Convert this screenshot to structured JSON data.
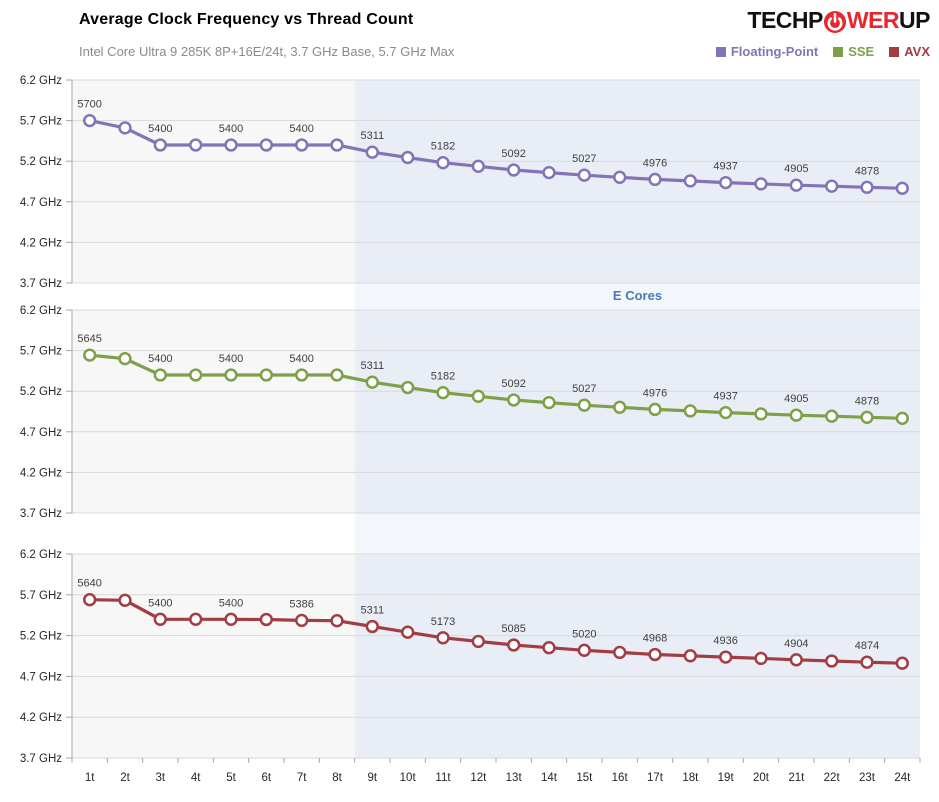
{
  "header": {
    "title": "Average Clock Frequency vs Thread Count",
    "subtitle": "Intel Core Ultra 9 285K 8P+16E/24t, 3.7 GHz Base, 5.7 GHz Max"
  },
  "logo": {
    "name": "TechPowerUp",
    "text_pre": "TECHP",
    "text_mid": "WER",
    "text_post": "UP"
  },
  "legend": [
    {
      "label": "Floating-Point",
      "color": "#8374b6"
    },
    {
      "label": "SSE",
      "color": "#7ea04a"
    },
    {
      "label": "AVX",
      "color": "#a13d43"
    }
  ],
  "chart_data": {
    "type": "line",
    "title": "Average Clock Frequency vs Thread Count",
    "subtitle": "Intel Core Ultra 9 285K 8P+16E/24t, 3.7 GHz Base, 5.7 GHz Max",
    "values_unit": "MHz",
    "categories": [
      "1t",
      "2t",
      "3t",
      "4t",
      "5t",
      "6t",
      "7t",
      "8t",
      "9t",
      "10t",
      "11t",
      "12t",
      "13t",
      "14t",
      "15t",
      "16t",
      "17t",
      "18t",
      "19t",
      "20t",
      "21t",
      "22t",
      "23t",
      "24t"
    ],
    "y_axis": {
      "unit": "GHz",
      "min": 3.7,
      "max": 6.2,
      "tick_step": 0.5,
      "tick_labels": [
        "6.2 GHz",
        "5.7 GHz",
        "5.2 GHz",
        "4.7 GHz",
        "4.2 GHz",
        "3.7 GHz"
      ]
    },
    "annotation": {
      "label": "E Cores",
      "color": "#4a7cba",
      "region_start_category": "9t"
    },
    "panels": [
      {
        "series": "Floating-Point",
        "color": "#8374b6",
        "values": [
          5700,
          5610,
          5400,
          5400,
          5400,
          5400,
          5400,
          5400,
          5311,
          5246,
          5182,
          5137,
          5092,
          5060,
          5027,
          5002,
          4976,
          4957,
          4937,
          4921,
          4905,
          4892,
          4878,
          4866
        ],
        "point_labels": [
          "5700",
          null,
          "5400",
          null,
          "5400",
          null,
          "5400",
          null,
          "5311",
          null,
          "5182",
          null,
          "5092",
          null,
          "5027",
          null,
          "4976",
          null,
          "4937",
          null,
          "4905",
          null,
          "4878",
          null
        ]
      },
      {
        "series": "SSE",
        "color": "#7ea04a",
        "values": [
          5645,
          5600,
          5400,
          5400,
          5400,
          5400,
          5400,
          5400,
          5311,
          5246,
          5182,
          5137,
          5092,
          5060,
          5027,
          5002,
          4976,
          4957,
          4937,
          4921,
          4905,
          4892,
          4878,
          4866
        ],
        "point_labels": [
          "5645",
          null,
          "5400",
          null,
          "5400",
          null,
          "5400",
          null,
          "5311",
          null,
          "5182",
          null,
          "5092",
          null,
          "5027",
          null,
          "4976",
          null,
          "4937",
          null,
          "4905",
          null,
          "4878",
          null
        ]
      },
      {
        "series": "AVX",
        "color": "#a13d43",
        "values": [
          5640,
          5633,
          5400,
          5400,
          5400,
          5397,
          5386,
          5383,
          5311,
          5242,
          5173,
          5129,
          5085,
          5052,
          5020,
          4994,
          4968,
          4952,
          4936,
          4920,
          4904,
          4889,
          4874,
          4862
        ],
        "point_labels": [
          "5640",
          null,
          "5400",
          null,
          "5400",
          null,
          "5386",
          null,
          "5311",
          null,
          "5173",
          null,
          "5085",
          null,
          "5020",
          null,
          "4968",
          null,
          "4936",
          null,
          "4904",
          null,
          "4874",
          null
        ]
      }
    ],
    "layout_hints": {
      "grid": true,
      "legend_position": "top-right",
      "stacked_panels": 3,
      "shaded_region_label": "E Cores"
    }
  },
  "colors": {
    "plot_bg": "#f7f7f7",
    "ecores_band": "#e9eef6",
    "ecores_band_gap": "#f3f6fa",
    "gridline": "#d9d9d9",
    "axis": "#a8a8a8",
    "tick": "#a8a8a8",
    "axis_text": "#262626",
    "data_label": "#3f3f3f",
    "logo_red": "#e8262d"
  }
}
